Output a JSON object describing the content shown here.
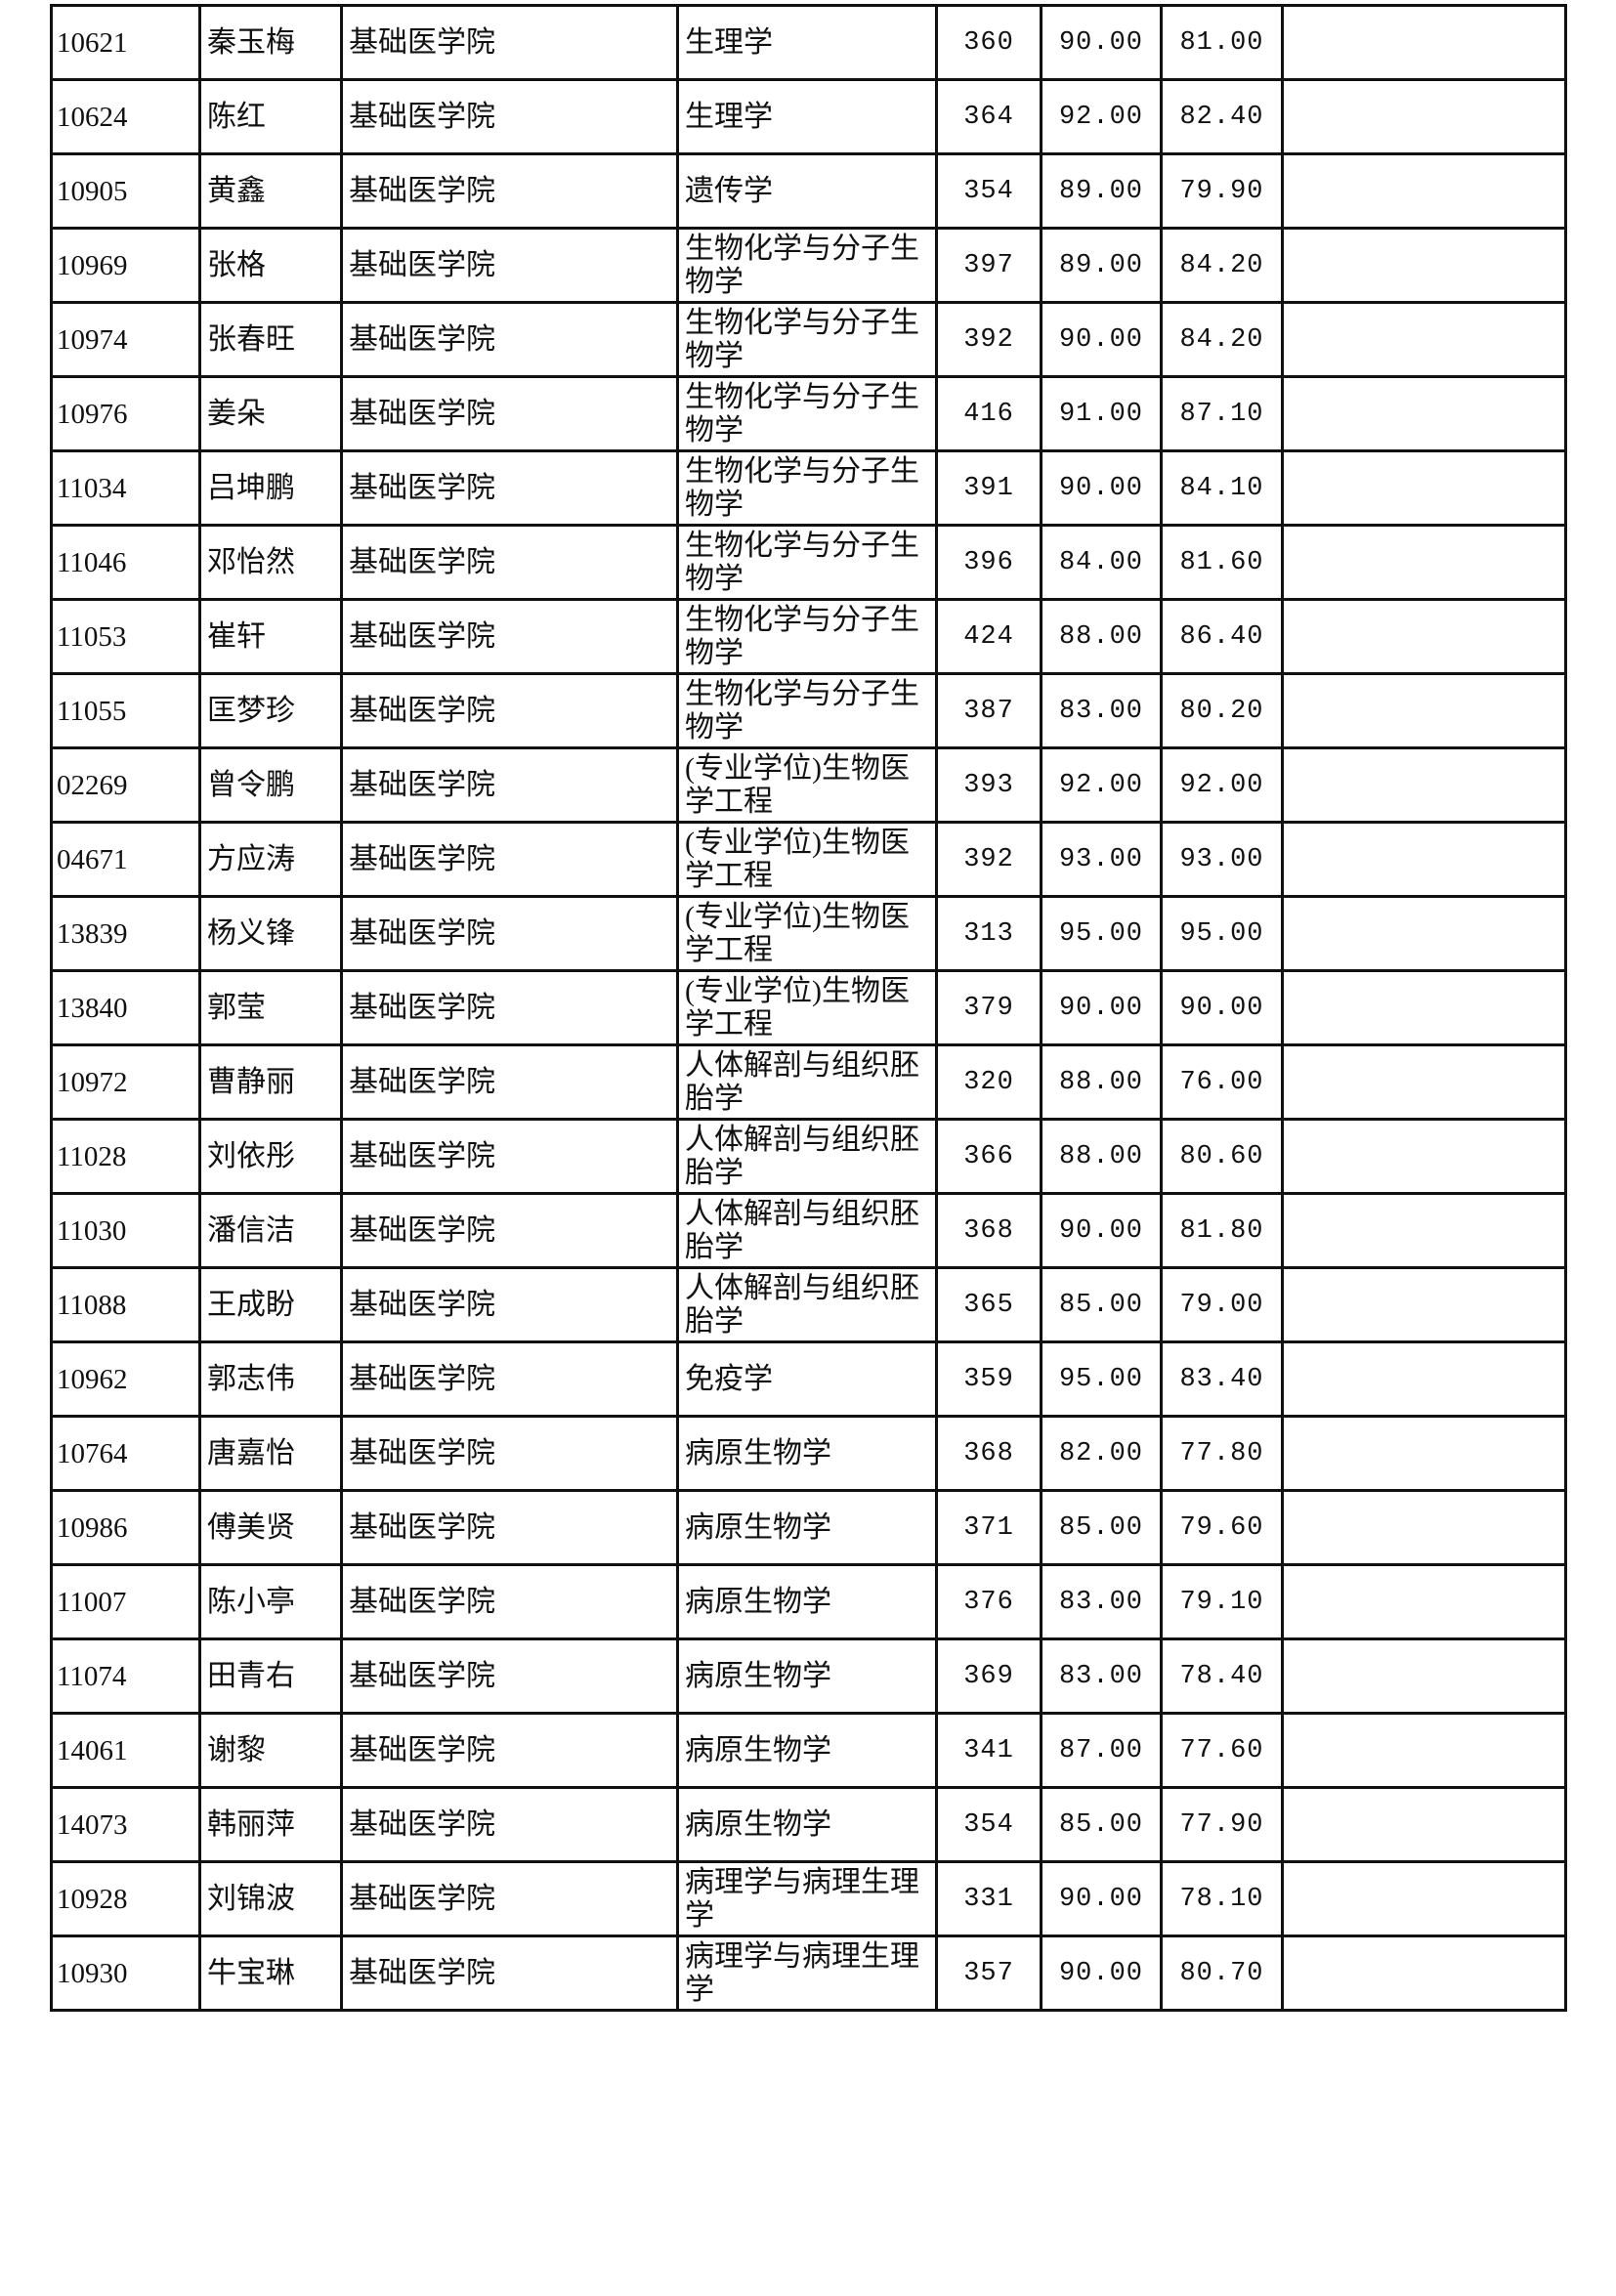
{
  "rows": [
    [
      "10621",
      "秦玉梅",
      "基础医学院",
      "生理学",
      "360",
      "90.00",
      "81.00",
      ""
    ],
    [
      "10624",
      "陈红",
      "基础医学院",
      "生理学",
      "364",
      "92.00",
      "82.40",
      ""
    ],
    [
      "10905",
      "黄鑫",
      "基础医学院",
      "遗传学",
      "354",
      "89.00",
      "79.90",
      ""
    ],
    [
      "10969",
      "张格",
      "基础医学院",
      "生物化学与分子生物学",
      "397",
      "89.00",
      "84.20",
      ""
    ],
    [
      "10974",
      "张春旺",
      "基础医学院",
      "生物化学与分子生物学",
      "392",
      "90.00",
      "84.20",
      ""
    ],
    [
      "10976",
      "姜朵",
      "基础医学院",
      "生物化学与分子生物学",
      "416",
      "91.00",
      "87.10",
      ""
    ],
    [
      "11034",
      "吕坤鹏",
      "基础医学院",
      "生物化学与分子生物学",
      "391",
      "90.00",
      "84.10",
      ""
    ],
    [
      "11046",
      "邓怡然",
      "基础医学院",
      "生物化学与分子生物学",
      "396",
      "84.00",
      "81.60",
      ""
    ],
    [
      "11053",
      "崔轩",
      "基础医学院",
      "生物化学与分子生物学",
      "424",
      "88.00",
      "86.40",
      ""
    ],
    [
      "11055",
      "匡梦珍",
      "基础医学院",
      "生物化学与分子生物学",
      "387",
      "83.00",
      "80.20",
      ""
    ],
    [
      "02269",
      "曾令鹏",
      "基础医学院",
      "(专业学位)生物医学工程",
      "393",
      "92.00",
      "92.00",
      ""
    ],
    [
      "04671",
      "方应涛",
      "基础医学院",
      "(专业学位)生物医学工程",
      "392",
      "93.00",
      "93.00",
      ""
    ],
    [
      "13839",
      "杨义锋",
      "基础医学院",
      "(专业学位)生物医学工程",
      "313",
      "95.00",
      "95.00",
      ""
    ],
    [
      "13840",
      "郭莹",
      "基础医学院",
      "(专业学位)生物医学工程",
      "379",
      "90.00",
      "90.00",
      ""
    ],
    [
      "10972",
      "曹静丽",
      "基础医学院",
      "人体解剖与组织胚胎学",
      "320",
      "88.00",
      "76.00",
      ""
    ],
    [
      "11028",
      "刘依彤",
      "基础医学院",
      "人体解剖与组织胚胎学",
      "366",
      "88.00",
      "80.60",
      ""
    ],
    [
      "11030",
      "潘信洁",
      "基础医学院",
      "人体解剖与组织胚胎学",
      "368",
      "90.00",
      "81.80",
      ""
    ],
    [
      "11088",
      "王成盼",
      "基础医学院",
      "人体解剖与组织胚胎学",
      "365",
      "85.00",
      "79.00",
      ""
    ],
    [
      "10962",
      "郭志伟",
      "基础医学院",
      "免疫学",
      "359",
      "95.00",
      "83.40",
      ""
    ],
    [
      "10764",
      "唐嘉怡",
      "基础医学院",
      "病原生物学",
      "368",
      "82.00",
      "77.80",
      ""
    ],
    [
      "10986",
      "傅美贤",
      "基础医学院",
      "病原生物学",
      "371",
      "85.00",
      "79.60",
      ""
    ],
    [
      "11007",
      "陈小亭",
      "基础医学院",
      "病原生物学",
      "376",
      "83.00",
      "79.10",
      ""
    ],
    [
      "11074",
      "田青右",
      "基础医学院",
      "病原生物学",
      "369",
      "83.00",
      "78.40",
      ""
    ],
    [
      "14061",
      "谢黎",
      "基础医学院",
      "病原生物学",
      "341",
      "87.00",
      "77.60",
      ""
    ],
    [
      "14073",
      "韩丽萍",
      "基础医学院",
      "病原生物学",
      "354",
      "85.00",
      "77.90",
      ""
    ],
    [
      "10928",
      "刘锦波",
      "基础医学院",
      "病理学与病理生理学",
      "331",
      "90.00",
      "78.10",
      ""
    ],
    [
      "10930",
      "牛宝琳",
      "基础医学院",
      "病理学与病理生理学",
      "357",
      "90.00",
      "80.70",
      ""
    ]
  ]
}
